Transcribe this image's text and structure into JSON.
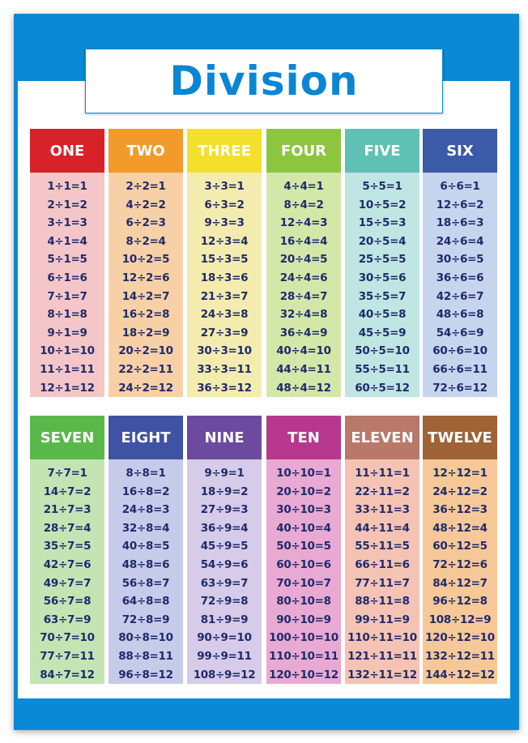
{
  "title": "Division",
  "columns": [
    {
      "label": "ONE",
      "header_color": "#d8222a",
      "body_color": "#f4c6c8",
      "facts": [
        "1÷1=1",
        "2÷1=2",
        "3÷1=3",
        "4÷1=4",
        "5÷1=5",
        "6÷1=6",
        "7÷1=7",
        "8÷1=8",
        "9÷1=9",
        "10÷1=10",
        "11÷1=11",
        "12÷1=12"
      ]
    },
    {
      "label": "TWO",
      "header_color": "#f39b2a",
      "body_color": "#f7d0a6",
      "facts": [
        "2÷2=1",
        "4÷2=2",
        "6÷2=3",
        "8÷2=4",
        "10÷2=5",
        "12÷2=6",
        "14÷2=7",
        "16÷2=8",
        "18÷2=9",
        "20÷2=10",
        "22÷2=11",
        "24÷2=12"
      ]
    },
    {
      "label": "THREE",
      "header_color": "#f3e02c",
      "body_color": "#f3ecae",
      "facts": [
        "3÷3=1",
        "6÷3=2",
        "9÷3=3",
        "12÷3=4",
        "15÷3=5",
        "18÷3=6",
        "21÷3=7",
        "24÷3=8",
        "27÷3=9",
        "30÷3=10",
        "33÷3=11",
        "36÷3=12"
      ]
    },
    {
      "label": "FOUR",
      "header_color": "#8cc63f",
      "body_color": "#d3e8a8",
      "facts": [
        "4÷4=1",
        "8÷4=2",
        "12÷4=3",
        "16÷4=4",
        "20÷4=5",
        "24÷4=6",
        "28÷4=7",
        "32÷4=8",
        "36÷4=9",
        "40÷4=10",
        "44÷4=11",
        "48÷4=12"
      ]
    },
    {
      "label": "FIVE",
      "header_color": "#5fc1b4",
      "body_color": "#bfe6e2",
      "facts": [
        "5÷5=1",
        "10÷5=2",
        "15÷5=3",
        "20÷5=4",
        "25÷5=5",
        "30÷5=6",
        "35÷5=7",
        "40÷5=8",
        "45÷5=9",
        "50÷5=10",
        "55÷5=11",
        "60÷5=12"
      ]
    },
    {
      "label": "SIX",
      "header_color": "#3b5aa8",
      "body_color": "#c6d4ee",
      "facts": [
        "6÷6=1",
        "12÷6=2",
        "18÷6=3",
        "24÷6=4",
        "30÷6=5",
        "36÷6=6",
        "42÷6=7",
        "48÷6=8",
        "54÷6=9",
        "60÷6=10",
        "66÷6=11",
        "72÷6=12"
      ]
    },
    {
      "label": "SEVEN",
      "header_color": "#5ab84a",
      "body_color": "#c4e4b4",
      "facts": [
        "7÷7=1",
        "14÷7=2",
        "21÷7=3",
        "28÷7=4",
        "35÷7=5",
        "42÷7=6",
        "49÷7=7",
        "56÷7=8",
        "63÷7=9",
        "70÷7=10",
        "77÷7=11",
        "84÷7=12"
      ]
    },
    {
      "label": "EIGHT",
      "header_color": "#3f52a4",
      "body_color": "#c6cbea",
      "facts": [
        "8÷8=1",
        "16÷8=2",
        "24÷8=3",
        "32÷8=4",
        "40÷8=5",
        "48÷8=6",
        "56÷8=7",
        "64÷8=8",
        "72÷8=9",
        "80÷8=10",
        "88÷8=11",
        "96÷8=12"
      ]
    },
    {
      "label": "NINE",
      "header_color": "#6b4a9f",
      "body_color": "#d6cbe8",
      "facts": [
        "9÷9=1",
        "18÷9=2",
        "27÷9=3",
        "36÷9=4",
        "45÷9=5",
        "54÷9=6",
        "63÷9=7",
        "72÷9=8",
        "81÷9=9",
        "90÷9=10",
        "99÷9=11",
        "108÷9=12"
      ]
    },
    {
      "label": "TEN",
      "header_color": "#b8378e",
      "body_color": "#e8a9d2",
      "facts": [
        "10÷10=1",
        "20÷10=2",
        "30÷10=3",
        "40÷10=4",
        "50÷10=5",
        "60÷10=6",
        "70÷10=7",
        "80÷10=8",
        "90÷10=9",
        "100÷10=10",
        "110÷10=11",
        "120÷10=12"
      ]
    },
    {
      "label": "ELEVEN",
      "header_color": "#b8786a",
      "body_color": "#f4c3b4",
      "facts": [
        "11÷11=1",
        "22÷11=2",
        "33÷11=3",
        "44÷11=4",
        "55÷11=5",
        "66÷11=6",
        "77÷11=7",
        "88÷11=8",
        "99÷11=9",
        "110÷11=10",
        "121÷11=11",
        "132÷11=12"
      ]
    },
    {
      "label": "TWELVE",
      "header_color": "#9f6336",
      "body_color": "#f6c898",
      "facts": [
        "12÷12=1",
        "24÷12=2",
        "36÷12=3",
        "48÷12=4",
        "60÷12=5",
        "72÷12=6",
        "84÷12=7",
        "96÷12=8",
        "108÷12=9",
        "120÷12=10",
        "132÷12=11",
        "144÷12=12"
      ]
    }
  ]
}
